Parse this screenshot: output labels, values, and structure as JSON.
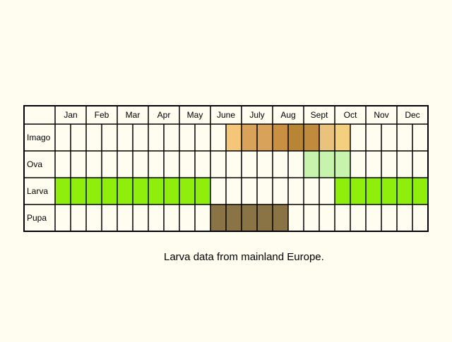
{
  "chart_data": {
    "type": "table",
    "months": [
      "Jan",
      "Feb",
      "Mar",
      "Apr",
      "May",
      "June",
      "July",
      "Aug",
      "Sept",
      "Oct",
      "Nov",
      "Dec"
    ],
    "stages": [
      {
        "label": "Imago",
        "cells": [
          {
            "index": 11,
            "color": "#f5c679"
          },
          {
            "index": 12,
            "color": "#d8a25a"
          },
          {
            "index": 13,
            "color": "#d8a25a"
          },
          {
            "index": 14,
            "color": "#c89040"
          },
          {
            "index": 15,
            "color": "#b88535"
          },
          {
            "index": 16,
            "color": "#c08b3d"
          },
          {
            "index": 17,
            "color": "#e9c27c"
          },
          {
            "index": 18,
            "color": "#f4cf7d"
          }
        ]
      },
      {
        "label": "Ova",
        "cells": [
          {
            "index": 16,
            "color": "#c7f3ad"
          },
          {
            "index": 17,
            "color": "#c7f3ad"
          },
          {
            "index": 18,
            "color": "#c7f3ad"
          }
        ]
      },
      {
        "label": "Larva",
        "cells": [
          {
            "index": 0,
            "color": "#8fee0b"
          },
          {
            "index": 1,
            "color": "#8fee0b"
          },
          {
            "index": 2,
            "color": "#8fee0b"
          },
          {
            "index": 3,
            "color": "#8fee0b"
          },
          {
            "index": 4,
            "color": "#8fee0b"
          },
          {
            "index": 5,
            "color": "#8fee0b"
          },
          {
            "index": 6,
            "color": "#8fee0b"
          },
          {
            "index": 7,
            "color": "#8fee0b"
          },
          {
            "index": 8,
            "color": "#8fee0b"
          },
          {
            "index": 9,
            "color": "#8fee0b"
          },
          {
            "index": 18,
            "color": "#8fee0b"
          },
          {
            "index": 19,
            "color": "#8fee0b"
          },
          {
            "index": 20,
            "color": "#8fee0b"
          },
          {
            "index": 21,
            "color": "#8fee0b"
          },
          {
            "index": 22,
            "color": "#8fee0b"
          },
          {
            "index": 23,
            "color": "#8fee0b"
          }
        ]
      },
      {
        "label": "Pupa",
        "cells": [
          {
            "index": 10,
            "color": "#8a7445"
          },
          {
            "index": 11,
            "color": "#8a7445"
          },
          {
            "index": 12,
            "color": "#8a7445"
          },
          {
            "index": 13,
            "color": "#8a7445"
          },
          {
            "index": 14,
            "color": "#8a7445"
          }
        ]
      }
    ],
    "grid": true
  },
  "caption": "Larva data from mainland Europe."
}
